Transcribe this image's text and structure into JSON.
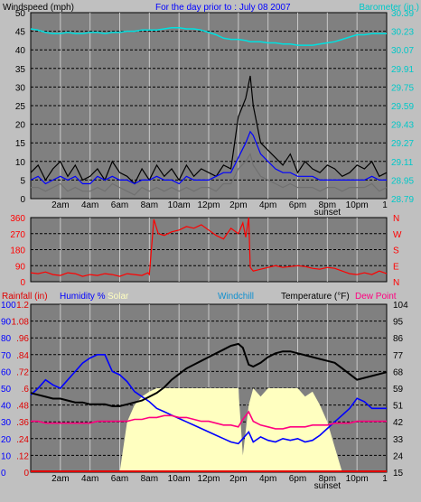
{
  "header": {
    "left_title": "Windspeed (mph)",
    "center_title": "For the day prior to :  July 08 2007",
    "right_title": "Barometer (in.)"
  },
  "colors": {
    "panel_bg": "#808080",
    "page_bg": "#c0c0c0",
    "grid": "#000000",
    "vgrid": "#c8c8c8",
    "wind_speed": "#000000",
    "wind_avg": "#0000ff",
    "wind_low": "#707070",
    "barometer": "#00e0e0",
    "direction": "#ff0000",
    "rain": "#e00000",
    "humidity": "#0000ff",
    "solar": "#ffffc0",
    "windchill": "#1090d0",
    "temperature": "#000000",
    "dewpoint": "#ff0080"
  },
  "chart_data": [
    {
      "type": "line",
      "name": "wind-barometer",
      "x_tick_labels": [
        "2am",
        "4am",
        "6am",
        "8am",
        "10am",
        "12pm",
        "2pm",
        "4pm",
        "6pm",
        "8pm",
        "10pm",
        "1"
      ],
      "annotations": [
        "sunset"
      ],
      "x_hours": [
        0,
        0.5,
        1,
        1.5,
        2,
        2.5,
        3,
        3.5,
        4,
        4.5,
        5,
        5.5,
        6,
        6.5,
        7,
        7.5,
        8,
        8.5,
        9,
        9.5,
        10,
        10.5,
        11,
        11.5,
        12,
        12.5,
        13,
        13.5,
        14,
        14.5,
        14.8,
        15,
        15.5,
        16,
        16.5,
        17,
        17.5,
        18,
        18.5,
        19,
        19.5,
        20,
        20.5,
        21,
        21.5,
        22,
        22.5,
        23,
        23.5,
        24
      ],
      "y_left_ticks": [
        "0",
        "5",
        "10",
        "15",
        "20",
        "25",
        "30",
        "35",
        "40",
        "45",
        "50"
      ],
      "y_left_range": [
        0,
        50
      ],
      "y_right_ticks": [
        "28.79",
        "28.95",
        "29.11",
        "29.27",
        "29.43",
        "29.59",
        "29.75",
        "29.91",
        "30.07",
        "30.23",
        "30.39"
      ],
      "y_right_range": [
        28.79,
        30.39
      ],
      "series": [
        {
          "key": "wind_speed",
          "axis": "left",
          "values": [
            7,
            9,
            5,
            8,
            10,
            6,
            9,
            5,
            6,
            8,
            5,
            10,
            7,
            6,
            4,
            8,
            5,
            9,
            6,
            8,
            5,
            9,
            6,
            8,
            7,
            6,
            9,
            8,
            22,
            27,
            33,
            25,
            15,
            13,
            11,
            9,
            12,
            7,
            10,
            8,
            7,
            9,
            8,
            6,
            7,
            9,
            8,
            10,
            6,
            7
          ]
        },
        {
          "key": "wind_avg",
          "axis": "left",
          "values": [
            5,
            6,
            4,
            5,
            6,
            5,
            6,
            4,
            4,
            6,
            5,
            6,
            5,
            5,
            4,
            5,
            5,
            6,
            5,
            5,
            4,
            6,
            5,
            5,
            5,
            6,
            7,
            7,
            11,
            15,
            18,
            17,
            12,
            10,
            8,
            7,
            7,
            6,
            6,
            6,
            5,
            5,
            5,
            5,
            5,
            5,
            5,
            6,
            5,
            5
          ]
        },
        {
          "key": "wind_low",
          "axis": "left",
          "values": [
            3,
            3,
            2,
            3,
            4,
            2,
            3,
            2,
            2,
            3,
            2,
            4,
            3,
            2,
            1,
            3,
            2,
            3,
            2,
            3,
            2,
            3,
            2,
            3,
            3,
            2,
            4,
            4,
            8,
            10,
            12,
            9,
            6,
            5,
            4,
            3,
            4,
            3,
            3,
            3,
            2,
            3,
            3,
            2,
            3,
            3,
            3,
            4,
            2,
            3
          ]
        },
        {
          "key": "barometer",
          "axis": "right",
          "values": [
            30.25,
            30.24,
            30.22,
            30.21,
            30.21,
            30.22,
            30.21,
            30.21,
            30.22,
            30.22,
            30.21,
            30.22,
            30.22,
            30.23,
            30.23,
            30.24,
            30.24,
            30.24,
            30.25,
            30.26,
            30.26,
            30.25,
            30.25,
            30.24,
            30.22,
            30.2,
            30.17,
            30.16,
            30.16,
            30.15,
            30.14,
            30.14,
            30.14,
            30.13,
            30.13,
            30.12,
            30.12,
            30.11,
            30.11,
            30.11,
            30.12,
            30.13,
            30.14,
            30.16,
            30.18,
            30.2,
            30.2,
            30.21,
            30.21,
            30.21
          ]
        }
      ]
    },
    {
      "type": "line",
      "name": "wind-direction",
      "y_left_ticks": [
        "0",
        "90",
        "180",
        "270",
        "360"
      ],
      "y_left_range": [
        0,
        360
      ],
      "y_right_ticks": [
        "N",
        "E",
        "S",
        "W",
        "N"
      ],
      "x_hours": [
        0,
        0.5,
        1,
        1.5,
        2,
        2.5,
        3,
        3.5,
        4,
        4.5,
        5,
        5.5,
        6,
        6.5,
        7,
        7.5,
        7.9,
        8,
        8.3,
        8.6,
        9,
        9.5,
        10,
        10.5,
        11,
        11.5,
        12,
        12.5,
        13,
        13.5,
        14,
        14.3,
        14.5,
        14.7,
        14.8,
        15,
        15.5,
        16,
        16.5,
        17,
        17.5,
        18,
        18.5,
        19,
        19.5,
        20,
        20.5,
        21,
        21.5,
        22,
        22.5,
        23,
        23.5,
        24
      ],
      "series": [
        {
          "key": "direction",
          "values": [
            50,
            45,
            55,
            40,
            35,
            50,
            45,
            30,
            40,
            35,
            45,
            40,
            30,
            45,
            40,
            35,
            50,
            40,
            350,
            270,
            260,
            280,
            290,
            310,
            300,
            320,
            290,
            260,
            240,
            300,
            270,
            330,
            250,
            360,
            80,
            60,
            70,
            80,
            90,
            80,
            85,
            90,
            85,
            75,
            70,
            80,
            75,
            60,
            45,
            40,
            50,
            40,
            60,
            45
          ]
        }
      ]
    },
    {
      "type": "line",
      "name": "temperature-humidity",
      "legend": [
        {
          "key": "rain",
          "label": "Rainfall (in)"
        },
        {
          "key": "humidity",
          "label": "Humidity %"
        },
        {
          "key": "solar",
          "label": "Solar"
        },
        {
          "key": "windchill",
          "label": "Windchill"
        },
        {
          "key": "temperature",
          "label": "Temperature (°F)"
        },
        {
          "key": "dewpoint",
          "label": "Dew Point"
        }
      ],
      "y_far_left_ticks": [
        "0",
        "10",
        "20",
        "30",
        "40",
        "50",
        "60",
        "70",
        "80",
        "90",
        "100"
      ],
      "y_rain_ticks": [
        "0",
        ".12",
        ".24",
        ".36",
        ".48",
        ".6",
        ".72",
        ".84",
        ".96",
        "1.08",
        "1.2"
      ],
      "y_left_range": [
        0,
        100
      ],
      "y_right_ticks": [
        "15",
        "24",
        "33",
        "42",
        "51",
        "59",
        "68",
        "77",
        "86",
        "95",
        "104"
      ],
      "y_right_range": [
        15,
        104
      ],
      "x_hours": [
        0,
        0.5,
        1,
        1.5,
        2,
        2.5,
        3,
        3.5,
        4,
        4.5,
        5,
        5.5,
        6,
        6.5,
        7,
        7.5,
        8,
        8.5,
        9,
        9.5,
        10,
        10.5,
        11,
        11.5,
        12,
        12.5,
        13,
        13.5,
        14,
        14.3,
        14.7,
        15,
        15.5,
        16,
        16.5,
        17,
        17.5,
        18,
        18.5,
        19,
        19.5,
        20,
        20.5,
        21,
        21.5,
        22,
        22.5,
        23,
        23.5,
        24
      ],
      "series": [
        {
          "key": "humidity",
          "axis": "left",
          "values": [
            46,
            50,
            55,
            52,
            50,
            55,
            60,
            65,
            68,
            70,
            70,
            60,
            58,
            54,
            48,
            45,
            42,
            38,
            36,
            34,
            32,
            30,
            28,
            26,
            24,
            22,
            20,
            18,
            17,
            20,
            24,
            18,
            21,
            19,
            18,
            20,
            19,
            20,
            18,
            19,
            22,
            26,
            30,
            34,
            38,
            44,
            42,
            38,
            38,
            38
          ]
        },
        {
          "key": "solar",
          "axis": "left",
          "values": [
            0,
            0,
            0,
            0,
            0,
            0,
            0,
            0,
            0,
            0,
            0,
            0,
            0,
            30,
            40,
            45,
            48,
            50,
            50,
            50,
            50,
            50,
            50,
            50,
            50,
            50,
            50,
            50,
            50,
            10,
            40,
            50,
            45,
            50,
            50,
            50,
            50,
            50,
            45,
            48,
            40,
            30,
            15,
            0,
            0,
            0,
            0,
            0,
            0,
            0
          ]
        },
        {
          "key": "temperature",
          "axis": "right",
          "values": [
            57,
            56,
            55,
            54,
            54,
            53,
            52,
            52,
            51,
            51,
            51,
            50,
            50,
            51,
            52,
            53,
            55,
            57,
            60,
            64,
            67,
            70,
            72,
            74,
            76,
            78,
            80,
            82,
            83,
            81,
            72,
            71,
            73,
            76,
            78,
            79,
            79,
            78,
            77,
            76,
            75,
            74,
            73,
            70,
            67,
            64,
            65,
            66,
            67,
            68
          ]
        },
        {
          "key": "dewpoint",
          "axis": "right",
          "values": [
            42,
            42,
            41,
            41,
            41,
            41,
            41,
            41,
            41,
            42,
            42,
            42,
            42,
            42,
            43,
            43,
            44,
            44,
            45,
            45,
            44,
            44,
            43,
            42,
            42,
            41,
            40,
            40,
            39,
            43,
            47,
            42,
            40,
            39,
            38,
            38,
            39,
            39,
            39,
            40,
            40,
            40,
            41,
            41,
            41,
            42,
            42,
            42,
            42,
            42
          ]
        }
      ]
    }
  ]
}
